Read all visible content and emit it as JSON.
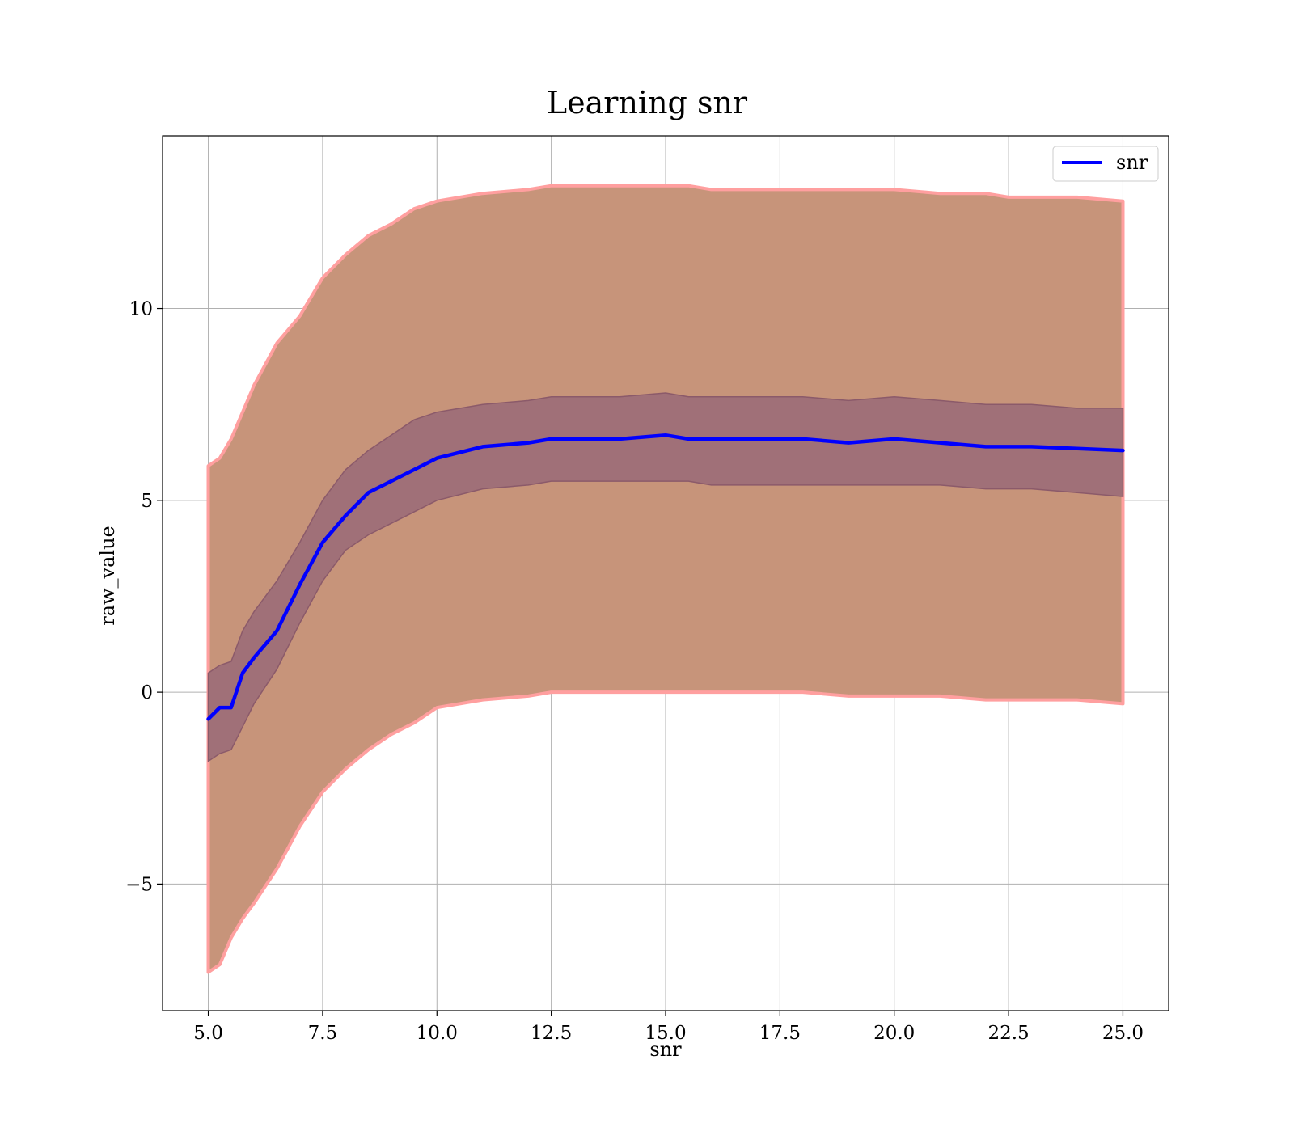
{
  "chart_data": {
    "type": "line",
    "title": "Learning snr",
    "xlabel": "snr",
    "ylabel": "raw_value",
    "xlim": [
      4.0,
      26.0
    ],
    "ylim": [
      -8.3,
      14.5
    ],
    "xticks": [
      5.0,
      7.5,
      10.0,
      12.5,
      15.0,
      17.5,
      20.0,
      22.5,
      25.0
    ],
    "xtick_labels": [
      "5.0",
      "7.5",
      "10.0",
      "12.5",
      "15.0",
      "17.5",
      "20.0",
      "22.5",
      "25.0"
    ],
    "yticks": [
      -5,
      0,
      5,
      10
    ],
    "ytick_labels": [
      "−5",
      "0",
      "5",
      "10"
    ],
    "grid": true,
    "legend": {
      "placement": "upper-right",
      "entries": [
        "snr"
      ]
    },
    "colors": {
      "line": "#0000ff",
      "outer_band": "#ff9f9f",
      "outer_band_fill": "#c7947a",
      "inner_band": "#a07078",
      "inner_band_edge": "#8b5a6a"
    },
    "x": [
      5.0,
      5.25,
      5.5,
      5.75,
      6.0,
      6.5,
      7.0,
      7.5,
      8.0,
      8.5,
      9.0,
      9.5,
      10.0,
      11.0,
      12.0,
      12.5,
      13.0,
      14.0,
      15.0,
      15.5,
      16.0,
      17.0,
      18.0,
      19.0,
      20.0,
      21.0,
      22.0,
      22.5,
      23.0,
      24.0,
      25.0
    ],
    "series": [
      {
        "name": "snr",
        "values": [
          -0.7,
          -0.4,
          -0.4,
          0.5,
          0.9,
          1.6,
          2.8,
          3.9,
          4.6,
          5.2,
          5.5,
          5.8,
          6.1,
          6.4,
          6.5,
          6.6,
          6.6,
          6.6,
          6.7,
          6.6,
          6.6,
          6.6,
          6.6,
          6.5,
          6.6,
          6.5,
          6.4,
          6.4,
          6.4,
          6.35,
          6.3
        ]
      }
    ],
    "bands": [
      {
        "kind": "outer",
        "lower": [
          -7.3,
          -7.1,
          -6.4,
          -5.9,
          -5.5,
          -4.6,
          -3.5,
          -2.6,
          -2.0,
          -1.5,
          -1.1,
          -0.8,
          -0.4,
          -0.2,
          -0.1,
          0.0,
          0.0,
          0.0,
          0.0,
          0.0,
          0.0,
          0.0,
          0.0,
          -0.1,
          -0.1,
          -0.1,
          -0.2,
          -0.2,
          -0.2,
          -0.2,
          -0.3
        ],
        "upper": [
          5.9,
          6.1,
          6.6,
          7.3,
          8.0,
          9.1,
          9.8,
          10.8,
          11.4,
          11.9,
          12.2,
          12.6,
          12.8,
          13.0,
          13.1,
          13.2,
          13.2,
          13.2,
          13.2,
          13.2,
          13.1,
          13.1,
          13.1,
          13.1,
          13.1,
          13.0,
          13.0,
          12.9,
          12.9,
          12.9,
          12.8
        ]
      },
      {
        "kind": "inner",
        "lower": [
          -1.8,
          -1.6,
          -1.5,
          -0.9,
          -0.3,
          0.6,
          1.8,
          2.9,
          3.7,
          4.1,
          4.4,
          4.7,
          5.0,
          5.3,
          5.4,
          5.5,
          5.5,
          5.5,
          5.5,
          5.5,
          5.4,
          5.4,
          5.4,
          5.4,
          5.4,
          5.4,
          5.3,
          5.3,
          5.3,
          5.2,
          5.1
        ],
        "upper": [
          0.5,
          0.7,
          0.8,
          1.6,
          2.1,
          2.9,
          3.9,
          5.0,
          5.8,
          6.3,
          6.7,
          7.1,
          7.3,
          7.5,
          7.6,
          7.7,
          7.7,
          7.7,
          7.8,
          7.7,
          7.7,
          7.7,
          7.7,
          7.6,
          7.7,
          7.6,
          7.5,
          7.5,
          7.5,
          7.4,
          7.4
        ]
      }
    ]
  }
}
